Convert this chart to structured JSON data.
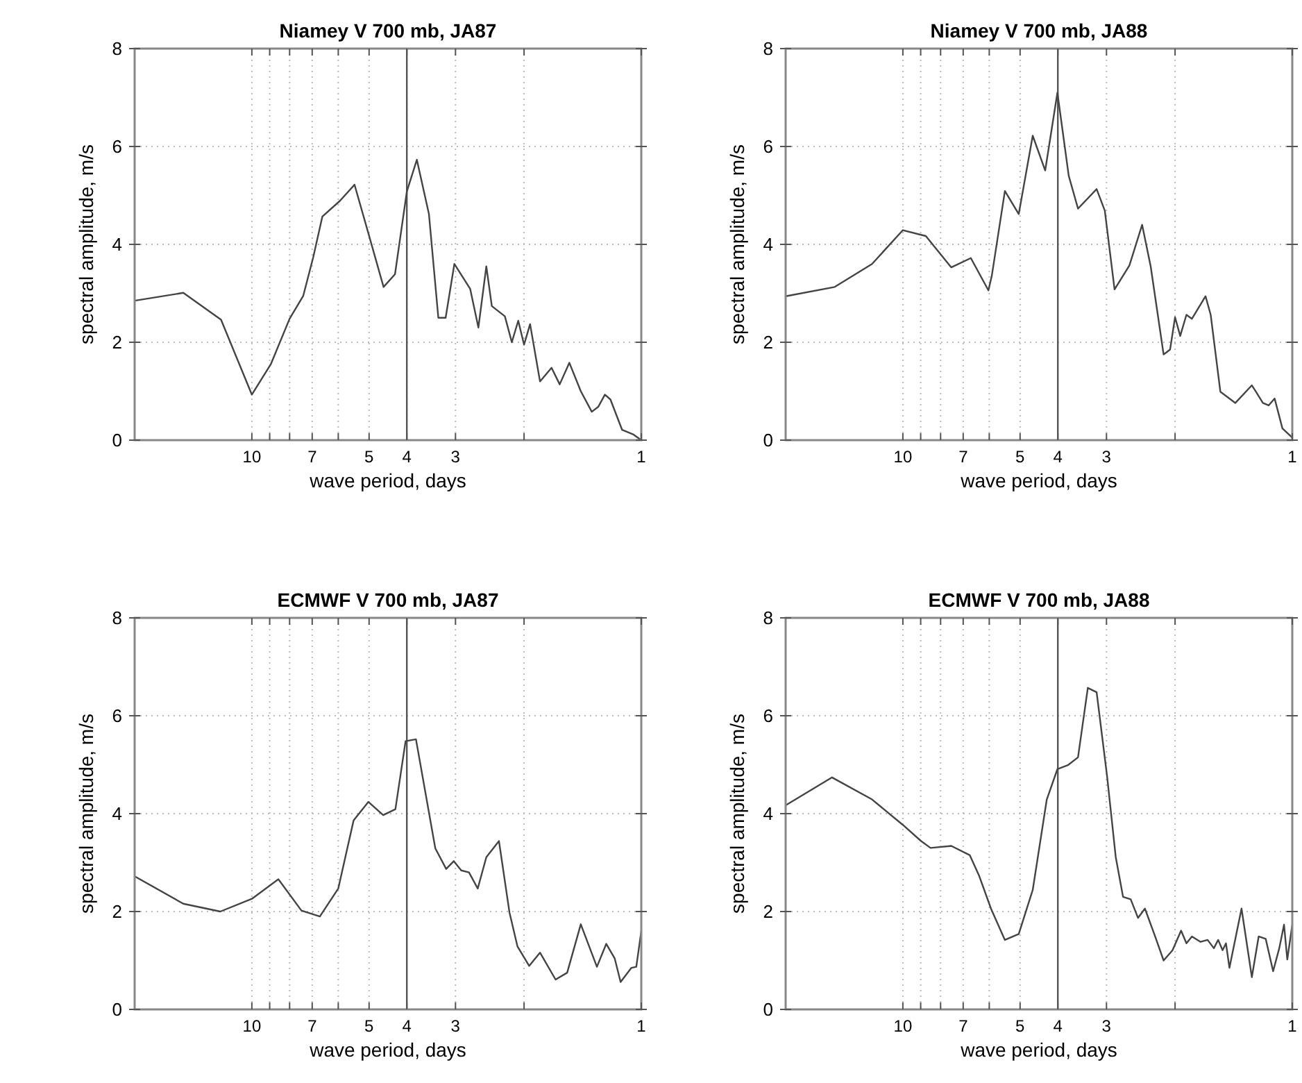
{
  "chart_data": [
    {
      "type": "line",
      "title": "Niamey V 700 mb, JA87",
      "xlabel": "wave period, days",
      "ylabel": "spectral amplitude, m/s",
      "log": "x",
      "xlim": [
        20,
        1
      ],
      "ylim": [
        0,
        8
      ],
      "xticks": [
        10,
        {
          "value": 9,
          "label": null
        },
        {
          "value": 8,
          "label": null
        },
        7,
        {
          "value": 6,
          "label": null
        },
        5,
        4,
        3,
        {
          "value": 2,
          "label": null
        },
        1
      ],
      "yticks": [
        0,
        2,
        4,
        6,
        8
      ],
      "grid": true,
      "ref_lines": [
        {
          "axis": "x",
          "value": 4,
          "color": "#555555",
          "line_style": "solid"
        }
      ],
      "series": [
        {
          "color": "#444444",
          "x": [
            20,
            15.0,
            12.0,
            10,
            8.93,
            8.0,
            7.38,
            6.96,
            6.59,
            5.94,
            5.45,
            4.99,
            4.59,
            4.29,
            4.0,
            3.77,
            3.51,
            3.32,
            3.18,
            3.02,
            2.75,
            2.62,
            2.5,
            2.42,
            2.24,
            2.15,
            2.07,
            2.0,
            1.93,
            1.82,
            1.7,
            1.62,
            1.53,
            1.43,
            1.34,
            1.29,
            1.24,
            1.2,
            1.12,
            1.05,
            1
          ],
          "values": [
            2.85,
            3.01,
            2.46,
            0.93,
            1.56,
            2.48,
            2.95,
            3.73,
            4.57,
            4.89,
            5.22,
            4.15,
            3.13,
            3.39,
            5.08,
            5.73,
            4.62,
            2.5,
            2.5,
            3.6,
            3.09,
            2.3,
            3.55,
            2.74,
            2.53,
            2.0,
            2.44,
            1.95,
            2.37,
            1.2,
            1.48,
            1.14,
            1.58,
            1.0,
            0.58,
            0.68,
            0.93,
            0.83,
            0.21,
            0.12,
            0
          ]
        }
      ]
    },
    {
      "type": "line",
      "title": "Niamey V 700 mb, JA88",
      "xlabel": "wave period, days",
      "ylabel": "spectral amplitude, m/s",
      "log": "x",
      "xlim": [
        20,
        1
      ],
      "ylim": [
        0,
        8
      ],
      "xticks": [
        10,
        {
          "value": 9,
          "label": null
        },
        {
          "value": 8,
          "label": null
        },
        7,
        {
          "value": 6,
          "label": null
        },
        5,
        4,
        3,
        {
          "value": 2,
          "label": null
        },
        1
      ],
      "yticks": [
        0,
        2,
        4,
        6,
        8
      ],
      "grid": true,
      "ref_lines": [
        {
          "axis": "x",
          "value": 4,
          "color": "#555555",
          "line_style": "solid"
        }
      ],
      "series": [
        {
          "color": "#444444",
          "x": [
            20,
            14.96,
            12.0,
            10,
            8.73,
            7.51,
            6.69,
            6.03,
            5.91,
            5.47,
            5.04,
            4.64,
            4.31,
            4.01,
            3.75,
            3.55,
            3.18,
            3.03,
            2.86,
            2.62,
            2.43,
            2.31,
            2.14,
            2.06,
            2.0,
            1.94,
            1.87,
            1.81,
            1.67,
            1.62,
            1.53,
            1.4,
            1.27,
            1.24,
            1.19,
            1.15,
            1.11,
            1.06,
            1
          ],
          "values": [
            2.94,
            3.13,
            3.6,
            4.29,
            4.17,
            3.53,
            3.72,
            3.06,
            3.36,
            5.09,
            4.62,
            6.22,
            5.51,
            7.1,
            5.4,
            4.73,
            5.13,
            4.69,
            3.08,
            3.57,
            4.4,
            3.55,
            1.75,
            1.85,
            2.51,
            2.13,
            2.56,
            2.48,
            2.94,
            2.56,
            0.99,
            0.76,
            1.12,
            0.99,
            0.76,
            0.71,
            0.85,
            0.24,
            0.05
          ]
        }
      ]
    },
    {
      "type": "line",
      "title": "ECMWF V 700 mb, JA87",
      "xlabel": "wave period, days",
      "ylabel": "spectral amplitude, m/s",
      "log": "x",
      "xlim": [
        20,
        1
      ],
      "ylim": [
        0,
        8
      ],
      "xticks": [
        10,
        {
          "value": 9,
          "label": null
        },
        {
          "value": 8,
          "label": null
        },
        7,
        {
          "value": 6,
          "label": null
        },
        5,
        4,
        3,
        {
          "value": 2,
          "label": null
        },
        1
      ],
      "yticks": [
        0,
        2,
        4,
        6,
        8
      ],
      "grid": true,
      "ref_lines": [
        {
          "axis": "x",
          "value": 4,
          "color": "#555555",
          "line_style": "solid"
        }
      ],
      "series": [
        {
          "color": "#444444",
          "x": [
            20,
            15.0,
            12.05,
            10,
            8.55,
            7.46,
            6.69,
            6.0,
            5.48,
            5.02,
            4.6,
            4.28,
            4.03,
            3.79,
            3.38,
            3.17,
            3.03,
            2.9,
            2.77,
            2.63,
            2.5,
            2.32,
            2.18,
            2.08,
            1.94,
            1.82,
            1.66,
            1.55,
            1.43,
            1.3,
            1.23,
            1.17,
            1.13,
            1.06,
            1.03,
            1
          ],
          "values": [
            2.72,
            2.16,
            2.0,
            2.26,
            2.66,
            2.02,
            1.9,
            2.47,
            3.86,
            4.24,
            3.97,
            4.09,
            5.48,
            5.52,
            3.29,
            2.87,
            3.03,
            2.84,
            2.8,
            2.47,
            3.11,
            3.44,
            1.98,
            1.29,
            0.89,
            1.16,
            0.61,
            0.75,
            1.74,
            0.87,
            1.34,
            1.04,
            0.56,
            0.85,
            0.87,
            1.6
          ]
        }
      ]
    },
    {
      "type": "line",
      "title": "ECMWF V 700 mb, JA88",
      "xlabel": "wave period, days",
      "ylabel": "spectral amplitude, m/s",
      "log": "x",
      "xlim": [
        20,
        1
      ],
      "ylim": [
        0,
        8
      ],
      "xticks": [
        10,
        {
          "value": 9,
          "label": null
        },
        {
          "value": 8,
          "label": null
        },
        7,
        {
          "value": 6,
          "label": null
        },
        5,
        4,
        3,
        {
          "value": 2,
          "label": null
        },
        1
      ],
      "yticks": [
        0,
        2,
        4,
        6,
        8
      ],
      "grid": true,
      "ref_lines": [
        {
          "axis": "x",
          "value": 4,
          "color": "#555555",
          "line_style": "solid"
        }
      ],
      "series": [
        {
          "color": "#444444",
          "x": [
            20,
            15.2,
            12.0,
            10,
            8.98,
            8.49,
            7.51,
            6.73,
            6.37,
            5.94,
            5.47,
            5.04,
            4.64,
            4.27,
            4.01,
            3.77,
            3.55,
            3.35,
            3.18,
            2.99,
            2.84,
            2.72,
            2.6,
            2.49,
            2.39,
            2.25,
            2.14,
            2.03,
            1.93,
            1.87,
            1.81,
            1.72,
            1.65,
            1.59,
            1.55,
            1.51,
            1.48,
            1.45,
            1.35,
            1.27,
            1.22,
            1.17,
            1.12,
            1.08,
            1.05,
            1.03,
            1
          ],
          "values": [
            4.17,
            4.74,
            4.29,
            3.77,
            3.44,
            3.3,
            3.34,
            3.15,
            2.73,
            2.06,
            1.42,
            1.54,
            2.44,
            4.29,
            4.91,
            4.99,
            5.15,
            6.57,
            6.48,
            4.77,
            3.11,
            2.3,
            2.25,
            1.87,
            2.06,
            1.49,
            1.0,
            1.21,
            1.61,
            1.35,
            1.49,
            1.38,
            1.42,
            1.25,
            1.42,
            1.21,
            1.35,
            0.85,
            2.06,
            0.66,
            1.49,
            1.44,
            0.78,
            1.25,
            1.73,
            1.02,
            1.73
          ]
        }
      ]
    }
  ]
}
